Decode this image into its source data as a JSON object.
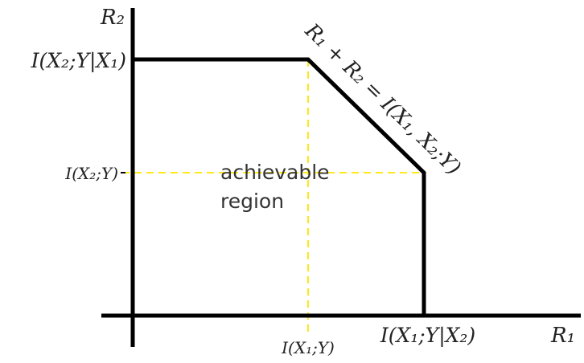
{
  "axes": {
    "x_label": "R₁",
    "y_label": "R₂"
  },
  "y_ticks": {
    "upper": "I(X₂;Y|X₁)",
    "lower": "I(X₂;Y)"
  },
  "x_ticks": {
    "left": "I(X₁;Y)",
    "right": "I(X₁;Y|X₂)"
  },
  "diagonal_label": "R₁ + R₂ = I(X₁, X₂;Y)",
  "region_label": {
    "line1": "achievable",
    "line2": "region"
  },
  "colors": {
    "boundary": "#000000",
    "guide_lines": "#ffe817",
    "text": "#222222"
  }
}
